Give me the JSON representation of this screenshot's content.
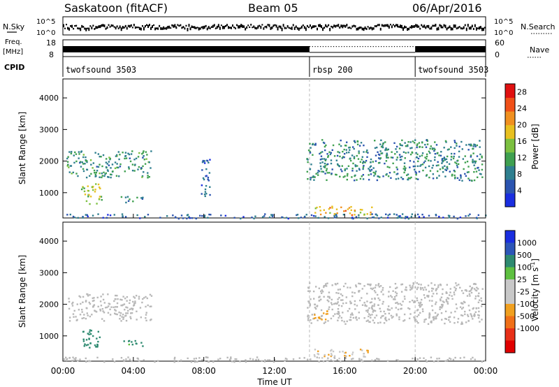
{
  "header": {
    "station": "Saskatoon (fitACF)",
    "beam": "Beam 05",
    "date": "06/Apr/2016"
  },
  "side_labels": {
    "nsky": "N.Sky",
    "freq_line1": "Freq.",
    "freq_line2": "[MHz]",
    "cpid": "CPID",
    "nsearch": "N.Search",
    "nave": "Nave"
  },
  "noise_panel": {
    "left_ticks": [
      "10^5",
      "10^0"
    ],
    "right_ticks": [
      "10^5",
      "10^0"
    ]
  },
  "freq_panel": {
    "left_ticks": [
      "18",
      "8"
    ],
    "right_ticks": [
      "60",
      "0"
    ]
  },
  "cpid_segments": [
    {
      "label": "twofsound 3503",
      "start_hour": 0
    },
    {
      "label": "rbsp 200",
      "start_hour": 14
    },
    {
      "label": "twofsound 3503",
      "start_hour": 20
    }
  ],
  "colors": {
    "power_scale": [
      "#1a2ee0",
      "#2b54b0",
      "#2f7f8f",
      "#3fa050",
      "#7cc040",
      "#e8c020",
      "#f09020",
      "#f05018",
      "#e01010"
    ],
    "velocity_scale": [
      "#1a2ee0",
      "#2d56b8",
      "#2e8a70",
      "#5ec040",
      "#c8c8c8",
      "#c8c8c8",
      "#f0a020",
      "#f07018",
      "#e83018",
      "#e00000"
    ],
    "ground_scatter": "#b8b8b8"
  },
  "chart_data": [
    {
      "type": "heatmap",
      "title": "",
      "ylabel": "Slant Range [km]",
      "xlabel": "Time UT",
      "xlim": [
        0,
        24
      ],
      "ylim": [
        200,
        4600
      ],
      "y_ticks": [
        1000,
        2000,
        3000,
        4000
      ],
      "x_ticks": [
        "00:00",
        "04:00",
        "08:00",
        "12:00",
        "16:00",
        "20:00",
        "00:00"
      ],
      "colorbar": {
        "label": "Power [dB]",
        "ticks": [
          4,
          8,
          12,
          16,
          20,
          24,
          28
        ],
        "range": [
          0,
          30
        ]
      },
      "regions": [
        {
          "t0": 0.2,
          "t1": 5.0,
          "r0": 1500,
          "r1": 2350,
          "value": 10
        },
        {
          "t0": 1.0,
          "t1": 2.2,
          "r0": 650,
          "r1": 1300,
          "value": 16
        },
        {
          "t0": 3.2,
          "t1": 4.6,
          "r0": 700,
          "r1": 900,
          "value": 9
        },
        {
          "t0": 7.8,
          "t1": 8.4,
          "r0": 900,
          "r1": 2100,
          "value": 6
        },
        {
          "t0": 13.8,
          "t1": 23.8,
          "r0": 1400,
          "r1": 2700,
          "value": 9
        },
        {
          "t0": 14.2,
          "t1": 17.5,
          "r0": 300,
          "r1": 600,
          "value": 20
        },
        {
          "t0": 0.0,
          "t1": 24.0,
          "r0": 200,
          "r1": 350,
          "value": 6
        }
      ]
    },
    {
      "type": "heatmap",
      "title": "",
      "ylabel": "Slant Range [km]",
      "xlabel": "Time UT",
      "xlim": [
        0,
        24
      ],
      "ylim": [
        200,
        4600
      ],
      "y_ticks": [
        1000,
        2000,
        3000,
        4000
      ],
      "x_ticks": [
        "00:00",
        "04:00",
        "08:00",
        "12:00",
        "16:00",
        "20:00",
        "00:00"
      ],
      "colorbar": {
        "label": "Velocity [m s^-1]",
        "ticks": [
          1000,
          500,
          100,
          25,
          -25,
          -100,
          -500,
          -1000
        ]
      },
      "regions": [
        {
          "t0": 0.2,
          "t1": 5.0,
          "r0": 1500,
          "r1": 2350,
          "value": 0
        },
        {
          "t0": 1.0,
          "t1": 2.2,
          "r0": 650,
          "r1": 1300,
          "value": 150
        },
        {
          "t0": 3.2,
          "t1": 4.6,
          "r0": 700,
          "r1": 900,
          "value": 120
        },
        {
          "t0": 13.8,
          "t1": 23.8,
          "r0": 1400,
          "r1": 2700,
          "value": 0
        },
        {
          "t0": 14.2,
          "t1": 15.0,
          "r0": 1500,
          "r1": 1900,
          "value": -300
        },
        {
          "t0": 14.2,
          "t1": 17.5,
          "r0": 300,
          "r1": 600,
          "value": -80
        },
        {
          "t0": 0.0,
          "t1": 24.0,
          "r0": 200,
          "r1": 350,
          "value": 0
        }
      ]
    }
  ]
}
